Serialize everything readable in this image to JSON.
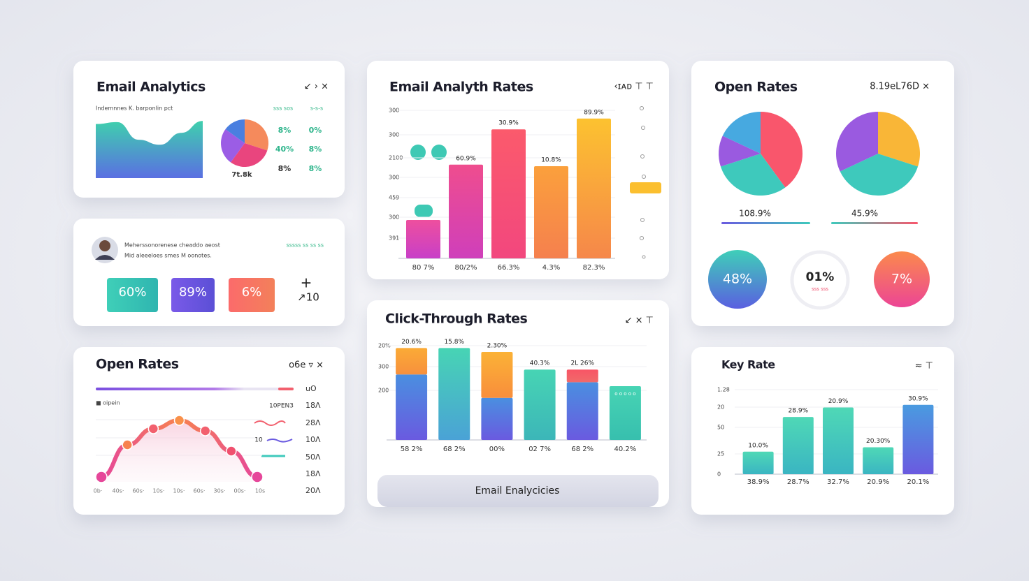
{
  "analytics": {
    "title": "Email Analytics",
    "controls": "↙ ›  ×",
    "subtitle": "Indemnnes K. barponlin pct",
    "column_heads": [
      "sss sos",
      "s-s-s"
    ],
    "area": {
      "values": [
        86,
        89,
        61,
        53,
        72,
        91
      ],
      "ylim": [
        0,
        100
      ],
      "colors": [
        "#3fd0ad",
        "#5a6fe2"
      ]
    },
    "pie": {
      "values": [
        30,
        30,
        25,
        15
      ],
      "colors": [
        "#f58a5c",
        "#e9457e",
        "#9b5de5",
        "#4a7fe0"
      ],
      "label": "7t.8k"
    },
    "stats": [
      [
        "8%",
        "0%"
      ],
      [
        "40%",
        "8%"
      ],
      [
        "8%",
        "8%"
      ]
    ]
  },
  "profile": {
    "lines": [
      "Meherssonorenese cheaddo aeost",
      "Mid aleeeloes smes M oonotes."
    ],
    "tag": "sssss ss ss ss",
    "tiles": [
      {
        "text": "60%",
        "colors": [
          "#3fcfb8",
          "#2fb5b0"
        ]
      },
      {
        "text": "89%",
        "colors": [
          "#7a5ae8",
          "#5b4fd6"
        ]
      },
      {
        "text": "6%",
        "colors": [
          "#fb6b6b",
          "#f3805a"
        ]
      }
    ],
    "extra": [
      "+",
      "↗10"
    ]
  },
  "open_rates_line": {
    "title": "Open Rates",
    "controls": "o6e ▿ ×",
    "legend": "■ oipein",
    "values": [
      7,
      53,
      76,
      88,
      73,
      44,
      7
    ],
    "ylim": [
      0,
      100
    ],
    "point_colors": [
      "#e6479a",
      "#f7824f",
      "#f2606e",
      "#f9904a",
      "#f2606e",
      "#f0506e",
      "#e6479a"
    ],
    "x_labels": [
      "0b·",
      "40s·",
      "60s·",
      "10s·",
      "10s·",
      "60s·",
      "30s·",
      "00s·",
      "10s"
    ],
    "right_labels": [
      "uO",
      "18Λ",
      "28Λ",
      "10Λ",
      "50Λ",
      "18Λ",
      "20Λ"
    ],
    "side_notes": [
      "10PEN3",
      "10"
    ]
  },
  "analyth_rates": {
    "title": "Email Analyth Rates",
    "controls": "‹ɪᴀᴅ  ⊤  ⊤",
    "y_labels": [
      "300",
      "300",
      "2100",
      "300",
      "459",
      "300",
      "391"
    ],
    "values": [
      25,
      61,
      84,
      60,
      91
    ],
    "ylim": [
      0,
      100
    ],
    "colors": [
      [
        "#ee4f9e",
        "#c83fc8"
      ],
      [
        "#ef4d8e",
        "#cf3fbb"
      ],
      [
        "#fb5a6c",
        "#f2477e"
      ],
      [
        "#fba03c",
        "#f5804e"
      ],
      [
        "#fcc230",
        "#f6874a"
      ]
    ],
    "bar_labels": [
      null,
      "60.9%",
      "30.9%",
      "10.8%",
      "89.9%"
    ],
    "categories": [
      "80 7%",
      "80/2%",
      "66.3%",
      "4.3%",
      "82.3%"
    ]
  },
  "click_through": {
    "title": "Click-Through Rates",
    "controls": "↙ ×  ⊤",
    "y_labels": [
      "20%",
      "300",
      "200"
    ],
    "ylim": [
      0,
      100
    ],
    "series": [
      {
        "values": [
          67,
          94,
          43,
          72,
          59,
          55
        ],
        "colors": [
          [
            "#4a8fe0",
            "#6a5ae0"
          ],
          [
            "#47d4b4",
            "#4aa2d6"
          ],
          [
            "#4a8fe0",
            "#6a5ae0"
          ],
          [
            "#47d4b4",
            "#3cb6b8"
          ],
          [
            "#4a8fe0",
            "#6a5ae0"
          ],
          [
            "#47d4b4",
            "#37bfae"
          ]
        ]
      },
      {
        "values": [
          27,
          null,
          47,
          null,
          13,
          null
        ],
        "colors": [
          [
            "#fbab36",
            "#f7903d"
          ],
          null,
          [
            "#fbb236",
            "#f88e3c"
          ],
          null,
          [
            "#f85566",
            "#f06a6a"
          ],
          null
        ]
      }
    ],
    "bar_labels": [
      "20.6%",
      "15.8%",
      "2.30%",
      "40.3%",
      "2L 26%",
      "o o o o o"
    ],
    "categories": [
      "58 2%",
      "68 2%",
      "00%",
      "02 7%",
      "68 2%",
      "40.2%"
    ],
    "button": "Email Enalycicies"
  },
  "open_rates_pies": {
    "title": "Open Rates",
    "controls": "8.19eL76D  ×",
    "pies": [
      {
        "values": [
          40,
          30,
          12,
          18
        ],
        "colors": [
          "#f9566c",
          "#3ec9bc",
          "#9a5ae0",
          "#47a9e0"
        ],
        "label": "108.9%"
      },
      {
        "values": [
          30,
          38,
          32
        ],
        "colors": [
          "#f9b637",
          "#3ec9bc",
          "#9a5ae0"
        ],
        "label": "45.9%"
      }
    ],
    "badges": [
      {
        "text": "48%",
        "colors": [
          "#3fcfb8",
          "#5a5fe0"
        ]
      },
      {
        "text": "01%",
        "sub": "sss sss"
      },
      {
        "text": "7%",
        "colors": [
          "#fb8a4c",
          "#ec4595"
        ]
      }
    ]
  },
  "key_rate": {
    "title": "Key Rate",
    "controls": "≈  ⊤",
    "y_labels": [
      "1.28",
      "20",
      "50",
      "25",
      "0"
    ],
    "values": [
      26,
      66,
      77,
      31,
      80
    ],
    "ylim": [
      0,
      100
    ],
    "colors": [
      [
        "#4fd8b6",
        "#3ab5c2"
      ],
      [
        "#4fd8b6",
        "#3ab5c2"
      ],
      [
        "#4fd8b6",
        "#3ab5c2"
      ],
      [
        "#4fd8b6",
        "#3ab5c2"
      ],
      [
        "#4a9be0",
        "#6a5ae0"
      ]
    ],
    "bar_labels": [
      "10.0%",
      "28.9%",
      "20.9%",
      "20.30%",
      "30.9%"
    ],
    "categories": [
      "38.9%",
      "28.7%",
      "32.7%",
      "20.9%",
      "20.1%"
    ]
  }
}
